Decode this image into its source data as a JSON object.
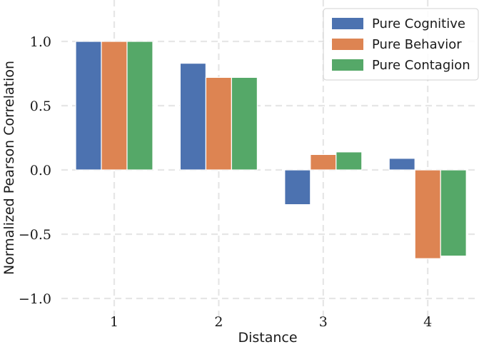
{
  "chart_data": {
    "type": "bar",
    "categories": [
      "1",
      "2",
      "3",
      "4"
    ],
    "series": [
      {
        "name": "Pure Cognitive",
        "color": "#4c72b0",
        "values": [
          1.0,
          0.83,
          -0.27,
          0.09
        ]
      },
      {
        "name": "Pure Behavior",
        "color": "#dd8452",
        "values": [
          1.0,
          0.72,
          0.12,
          -0.69
        ]
      },
      {
        "name": "Pure Contagion",
        "color": "#55a868",
        "values": [
          1.0,
          0.72,
          0.14,
          -0.67
        ]
      }
    ],
    "xlabel": "Distance",
    "ylabel": "Normalized Pearson Correlation",
    "ylim": [
      -1.1,
      1.2
    ],
    "yticks": [
      1.0,
      0.5,
      0.0,
      -0.5,
      -1.0
    ],
    "ytick_labels": [
      "1.0",
      "0.5",
      "0.0",
      "−0.5",
      "−1.0"
    ],
    "grid": true,
    "legend_position": "top-right"
  }
}
